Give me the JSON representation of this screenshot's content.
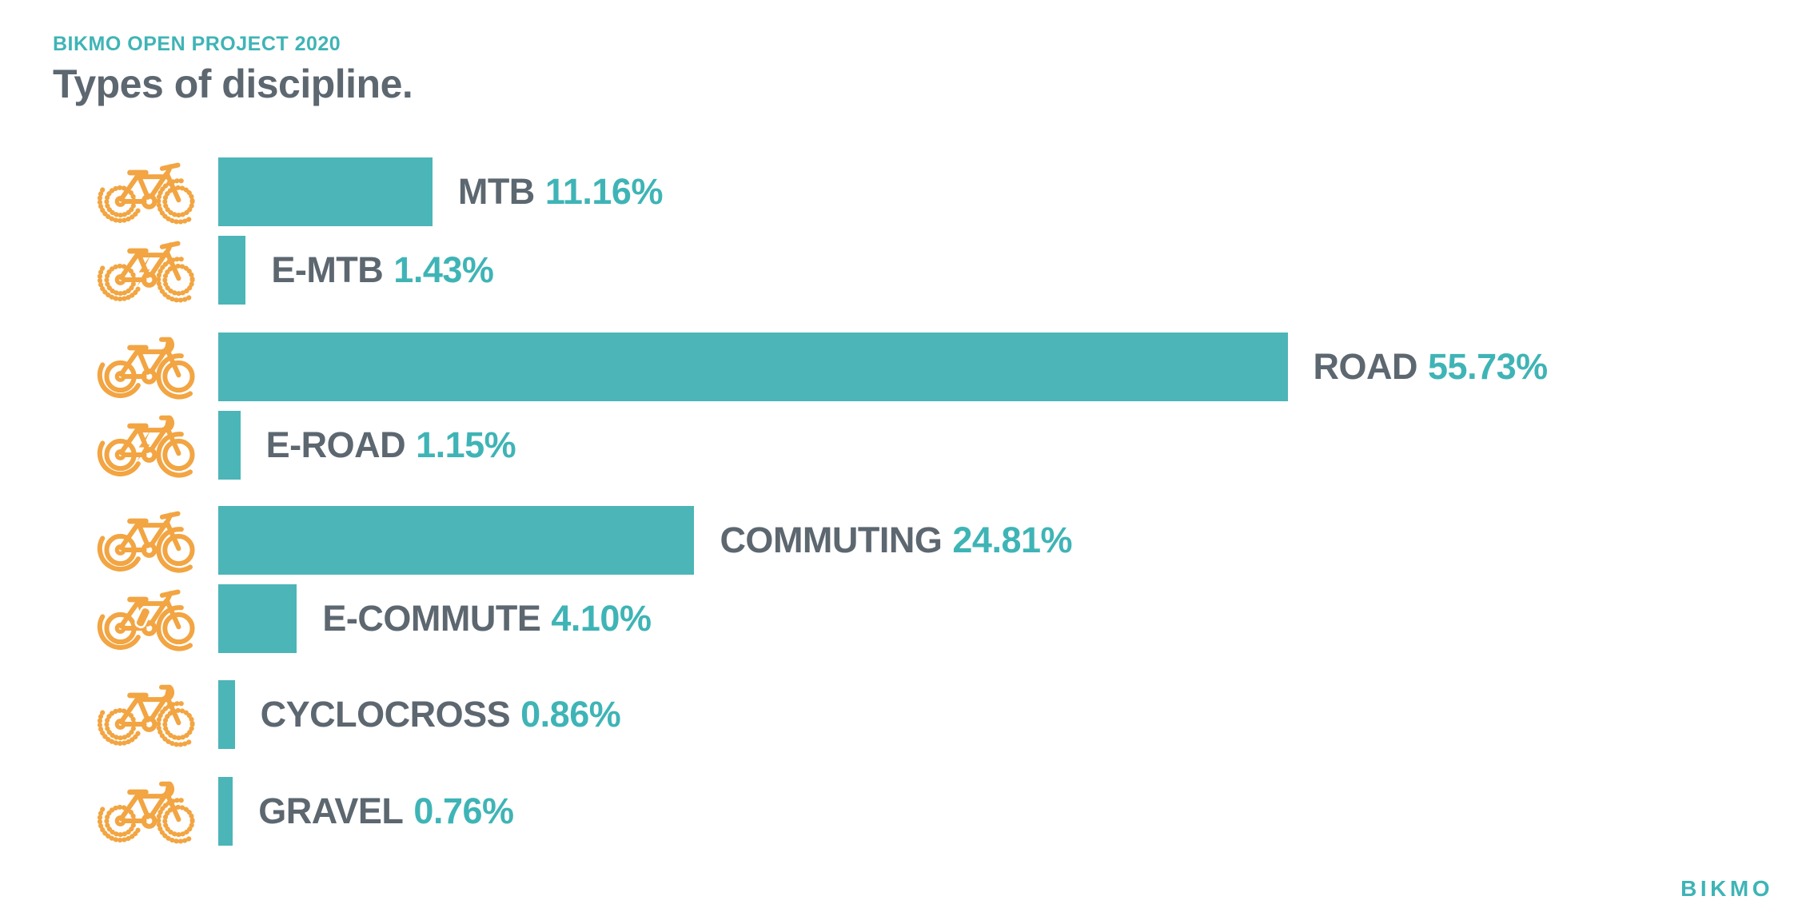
{
  "header": {
    "kicker": "BIKMO OPEN PROJECT 2020",
    "title": "Types of discipline."
  },
  "footer": {
    "logo": "BIKMO"
  },
  "colors": {
    "teal_bar": "#4CB5B8",
    "teal_text": "#3FB4B6",
    "gray_text": "#5C6770",
    "orange_icon": "#F2A542",
    "background": "#FFFFFF"
  },
  "chart_data": {
    "type": "bar",
    "orientation": "horizontal",
    "title": "Types of discipline.",
    "unit": "%",
    "xlim": [
      0,
      60
    ],
    "grid": false,
    "legend": "none",
    "bar_color": "#4CB5B8",
    "categories": [
      "MTB",
      "E-MTB",
      "ROAD",
      "E-ROAD",
      "COMMUTING",
      "E-COMMUTE",
      "CYCLOCROSS",
      "GRAVEL"
    ],
    "values": [
      11.16,
      1.43,
      55.73,
      1.15,
      24.81,
      4.1,
      0.86,
      0.76
    ],
    "value_labels": [
      "11.16%",
      "1.43%",
      "55.73%",
      "1.15%",
      "24.81%",
      "4.10%",
      "0.86%",
      "0.76%"
    ],
    "icons": [
      "mtb-bike-icon",
      "e-mtb-bike-icon",
      "road-bike-icon",
      "e-road-bike-icon",
      "commuting-bike-icon",
      "e-commute-bike-icon",
      "cyclocross-bike-icon",
      "gravel-bike-icon"
    ]
  }
}
